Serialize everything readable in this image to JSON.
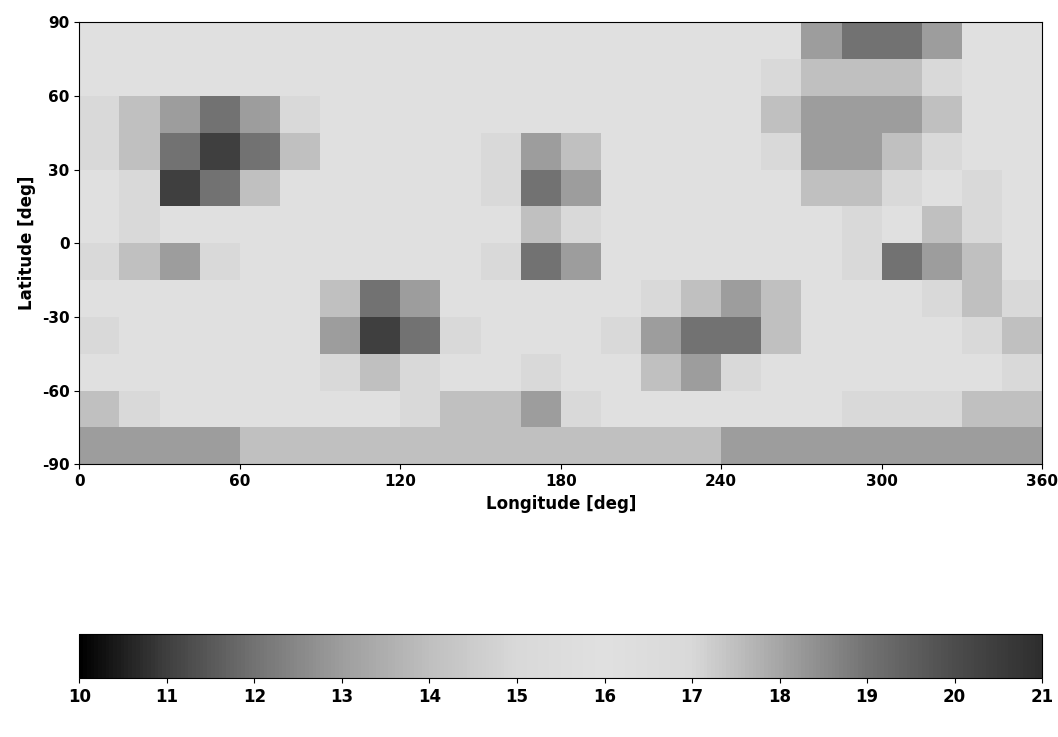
{
  "chart_data": {
    "type": "heatmap",
    "x_label": "Longitude [deg]",
    "y_label": "Latitude [deg]",
    "xlim": [
      0,
      360
    ],
    "ylim": [
      -90,
      90
    ],
    "xticks": [
      0,
      60,
      120,
      180,
      240,
      300,
      360
    ],
    "yticks": [
      -90,
      -60,
      -30,
      0,
      30,
      60,
      90
    ],
    "cells": [
      [
        16,
        16,
        16,
        16,
        16,
        16,
        16,
        16,
        16,
        16,
        16,
        16,
        16,
        16,
        16,
        16,
        16,
        16,
        13,
        12,
        12,
        13,
        16,
        16
      ],
      [
        16,
        16,
        16,
        16,
        16,
        16,
        16,
        16,
        16,
        16,
        16,
        16,
        16,
        16,
        16,
        16,
        16,
        15,
        14,
        14,
        14,
        15,
        16,
        16
      ],
      [
        15,
        14,
        13,
        12,
        13,
        15,
        16,
        16,
        16,
        16,
        16,
        16,
        16,
        16,
        16,
        16,
        16,
        14,
        13,
        13,
        13,
        14,
        16,
        16
      ],
      [
        15,
        14,
        12,
        11,
        12,
        14,
        16,
        16,
        16,
        16,
        15,
        13,
        14,
        16,
        16,
        16,
        16,
        15,
        13,
        13,
        14,
        15,
        16,
        16
      ],
      [
        16,
        15,
        11,
        12,
        14,
        16,
        16,
        16,
        16,
        16,
        15,
        12,
        13,
        16,
        16,
        16,
        16,
        16,
        14,
        14,
        15,
        16,
        15,
        16
      ],
      [
        16,
        15,
        16,
        16,
        16,
        16,
        16,
        16,
        16,
        16,
        16,
        14,
        15,
        16,
        16,
        16,
        16,
        16,
        16,
        15,
        16,
        14,
        15,
        16
      ],
      [
        15,
        14,
        13,
        15,
        16,
        16,
        16,
        16,
        16,
        16,
        15,
        12,
        13,
        16,
        16,
        16,
        16,
        16,
        16,
        15,
        12,
        13,
        14,
        16
      ],
      [
        16,
        16,
        16,
        16,
        16,
        16,
        14,
        12,
        13,
        16,
        16,
        16,
        16,
        16,
        15,
        14,
        13,
        14,
        16,
        16,
        16,
        15,
        14,
        15
      ],
      [
        15,
        16,
        16,
        16,
        16,
        16,
        13,
        11,
        12,
        15,
        16,
        16,
        16,
        15,
        13,
        12,
        12,
        14,
        16,
        16,
        16,
        16,
        15,
        14
      ],
      [
        16,
        16,
        16,
        16,
        16,
        16,
        15,
        14,
        15,
        16,
        16,
        15,
        16,
        16,
        14,
        13,
        15,
        16,
        16,
        16,
        16,
        16,
        16,
        15
      ],
      [
        14,
        15,
        16,
        16,
        16,
        16,
        16,
        16,
        15,
        14,
        14,
        13,
        15,
        16,
        16,
        16,
        16,
        16,
        16,
        15,
        15,
        15,
        14,
        14
      ],
      [
        13,
        13,
        13,
        13,
        14,
        14,
        14,
        14,
        14,
        14,
        14,
        14,
        14,
        14,
        14,
        14,
        13,
        13,
        13,
        13,
        13,
        13,
        13,
        13
      ]
    ],
    "colorbar_range": [
      10,
      21
    ],
    "colorbar_ticks": [
      10,
      11,
      12,
      13,
      14,
      15,
      16,
      17,
      18,
      19,
      20,
      21
    ]
  }
}
